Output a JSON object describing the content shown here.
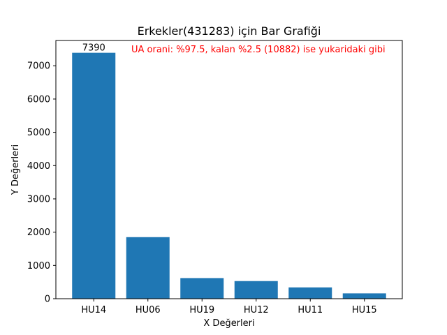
{
  "chart_data": {
    "type": "bar",
    "title": "Erkekler(431283) için Bar Grafiği",
    "xlabel": "X Değerleri",
    "ylabel": "Y Değerleri",
    "categories": [
      "HU14",
      "HU06",
      "HU19",
      "HU12",
      "HU11",
      "HU15"
    ],
    "values": [
      7390,
      1850,
      620,
      530,
      340,
      160
    ],
    "ylim": [
      0,
      7760
    ],
    "yticks": [
      0,
      1000,
      2000,
      3000,
      4000,
      5000,
      6000,
      7000
    ],
    "data_labels": [
      {
        "index": 0,
        "text": "7390"
      }
    ],
    "annotation": "UA orani: %97.5, kalan %2.5 (10882) ise yukaridaki gibi",
    "grid": false,
    "colors": {
      "bar": "#1f77b4",
      "annotation": "#ff0000",
      "axes": "#000000"
    }
  }
}
